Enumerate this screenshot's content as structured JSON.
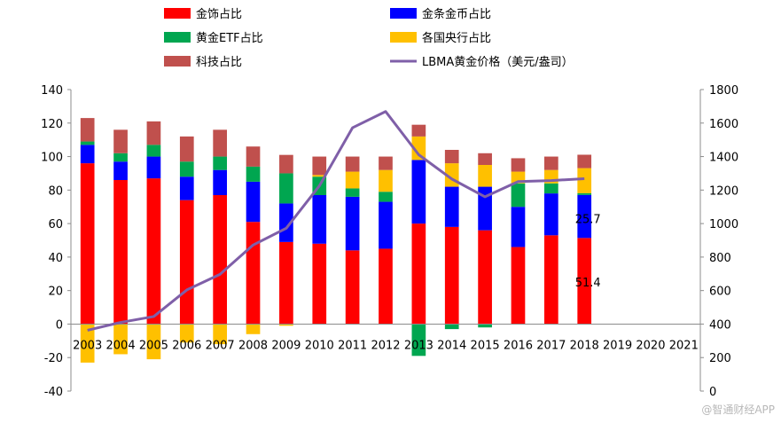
{
  "chart_data": {
    "type": "bar",
    "stacked": true,
    "categories": [
      "2003",
      "2004",
      "2005",
      "2006",
      "2007",
      "2008",
      "2009",
      "2010",
      "2011",
      "2012",
      "2013",
      "2014",
      "2015",
      "2016",
      "2017",
      "2018",
      "2019",
      "2020",
      "2021"
    ],
    "series": [
      {
        "name": "金饰占比",
        "color": "#ff0000",
        "values": [
          96,
          86,
          87,
          74,
          77,
          61,
          49,
          48,
          44,
          45,
          60,
          58,
          56,
          46,
          53,
          51.4,
          null,
          null,
          null
        ]
      },
      {
        "name": "金条金币占比",
        "color": "#0000ff",
        "values": [
          11,
          11,
          13,
          14,
          15,
          24,
          23,
          29,
          32,
          28,
          38,
          24,
          26,
          24,
          25,
          25.7,
          null,
          null,
          null
        ]
      },
      {
        "name": "黄金ETF占比",
        "color": "#00a650",
        "values": [
          2,
          5,
          7,
          9,
          8,
          9,
          18,
          11,
          5,
          6,
          -19,
          -3,
          -2,
          14,
          6,
          1,
          null,
          null,
          null
        ]
      },
      {
        "name": "各国央行占比",
        "color": "#ffc000",
        "values": [
          -23,
          -18,
          -21,
          -11,
          -12,
          -6,
          -1,
          1,
          10,
          13,
          14,
          14,
          13,
          7,
          8,
          15,
          null,
          null,
          null
        ]
      },
      {
        "name": "科技占比",
        "color": "#c0504d",
        "values": [
          14,
          14,
          14,
          15,
          16,
          12,
          11,
          11,
          9,
          8,
          7,
          8,
          7,
          8,
          8,
          8,
          null,
          null,
          null
        ]
      }
    ],
    "line": {
      "name": "LBMA黄金价格（美元/盎司）",
      "color": "#7f5fa8",
      "axis": "right",
      "values": [
        363,
        410,
        445,
        604,
        697,
        872,
        972,
        1225,
        1572,
        1669,
        1411,
        1266,
        1160,
        1251,
        1257,
        1268,
        null,
        null,
        null
      ]
    },
    "y_left": {
      "min": -40,
      "max": 140,
      "step": 20,
      "ticks": [
        "-40",
        "-20",
        "0",
        "20",
        "40",
        "60",
        "80",
        "100",
        "120",
        "140"
      ]
    },
    "y_right": {
      "min": 0,
      "max": 1800,
      "step": 200,
      "ticks": [
        "0",
        "200",
        "400",
        "600",
        "800",
        "1000",
        "1200",
        "1400",
        "1600",
        "1800"
      ]
    },
    "data_labels": [
      {
        "text": "25.7",
        "category": "2018",
        "y": 63
      },
      {
        "text": "51.4",
        "category": "2018",
        "y": 25
      }
    ],
    "legend": {
      "position": "top",
      "items": [
        {
          "label": "金饰占比",
          "kind": "swatch",
          "color": "#ff0000"
        },
        {
          "label": "金条金币占比",
          "kind": "swatch",
          "color": "#0000ff"
        },
        {
          "label": "黄金ETF占比",
          "kind": "swatch",
          "color": "#00a650"
        },
        {
          "label": "各国央行占比",
          "kind": "swatch",
          "color": "#ffc000"
        },
        {
          "label": "科技占比",
          "kind": "swatch",
          "color": "#c0504d"
        },
        {
          "label": "LBMA黄金价格（美元/盎司）",
          "kind": "line",
          "color": "#7f5fa8"
        }
      ]
    },
    "title": "",
    "xlabel": "",
    "ylabel": "",
    "grid": false
  },
  "watermark": "@智通财经APP"
}
